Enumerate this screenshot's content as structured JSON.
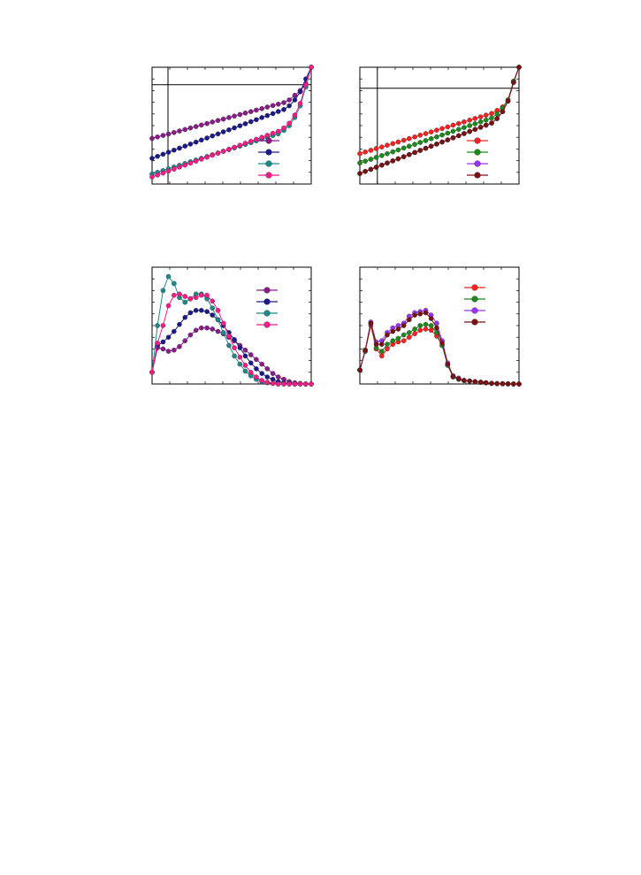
{
  "chart_data": [
    {
      "type": "line",
      "grid": false,
      "legend": "bottom-right",
      "xlim": [
        0,
        1
      ],
      "ylim": [
        0,
        1
      ],
      "refline_x": 0.1,
      "refline_y": 0.85,
      "x": [
        0,
        0.034,
        0.069,
        0.103,
        0.138,
        0.172,
        0.207,
        0.241,
        0.276,
        0.31,
        0.345,
        0.379,
        0.414,
        0.448,
        0.483,
        0.517,
        0.552,
        0.586,
        0.621,
        0.655,
        0.69,
        0.724,
        0.759,
        0.793,
        0.828,
        0.862,
        0.897,
        0.931,
        0.966,
        1.0
      ],
      "series": [
        {
          "color": "#8b1a8b",
          "values": [
            0.39,
            0.403,
            0.416,
            0.428,
            0.441,
            0.454,
            0.467,
            0.48,
            0.492,
            0.505,
            0.518,
            0.531,
            0.544,
            0.556,
            0.569,
            0.582,
            0.595,
            0.608,
            0.62,
            0.633,
            0.646,
            0.659,
            0.672,
            0.684,
            0.697,
            0.72,
            0.76,
            0.8,
            0.86,
            1.0
          ]
        },
        {
          "color": "#1a1a8b",
          "values": [
            0.22,
            0.237,
            0.255,
            0.272,
            0.29,
            0.307,
            0.325,
            0.342,
            0.359,
            0.377,
            0.394,
            0.412,
            0.429,
            0.447,
            0.464,
            0.481,
            0.499,
            0.516,
            0.534,
            0.551,
            0.569,
            0.586,
            0.603,
            0.621,
            0.638,
            0.67,
            0.72,
            0.79,
            0.9,
            1.0
          ]
        },
        {
          "color": "#1a8b8b",
          "values": [
            0.085,
            0.1,
            0.115,
            0.13,
            0.145,
            0.16,
            0.175,
            0.19,
            0.205,
            0.22,
            0.235,
            0.25,
            0.265,
            0.28,
            0.295,
            0.31,
            0.325,
            0.34,
            0.355,
            0.37,
            0.385,
            0.4,
            0.415,
            0.43,
            0.46,
            0.5,
            0.57,
            0.67,
            0.83,
            1.0
          ]
        },
        {
          "color": "#ff1a8b",
          "values": [
            0.06,
            0.077,
            0.094,
            0.111,
            0.128,
            0.145,
            0.162,
            0.179,
            0.196,
            0.213,
            0.23,
            0.247,
            0.264,
            0.281,
            0.298,
            0.315,
            0.332,
            0.349,
            0.366,
            0.383,
            0.4,
            0.417,
            0.434,
            0.451,
            0.48,
            0.52,
            0.59,
            0.69,
            0.85,
            1.0
          ]
        }
      ]
    },
    {
      "type": "line",
      "grid": false,
      "legend": "bottom-right",
      "xlim": [
        0,
        1
      ],
      "ylim": [
        0,
        1
      ],
      "refline_x": 0.11,
      "refline_y": 0.82,
      "x": [
        0,
        0.034,
        0.069,
        0.103,
        0.138,
        0.172,
        0.207,
        0.241,
        0.276,
        0.31,
        0.345,
        0.379,
        0.414,
        0.448,
        0.483,
        0.517,
        0.552,
        0.586,
        0.621,
        0.655,
        0.69,
        0.724,
        0.759,
        0.793,
        0.828,
        0.862,
        0.897,
        0.931,
        0.966,
        1.0
      ],
      "series": [
        {
          "color": "#ff2020",
          "values": [
            0.26,
            0.274,
            0.289,
            0.303,
            0.317,
            0.332,
            0.346,
            0.36,
            0.375,
            0.389,
            0.403,
            0.418,
            0.432,
            0.446,
            0.461,
            0.475,
            0.489,
            0.504,
            0.518,
            0.532,
            0.547,
            0.561,
            0.575,
            0.59,
            0.604,
            0.63,
            0.66,
            0.72,
            0.88,
            1.0
          ]
        },
        {
          "color": "#1a8b1a",
          "values": [
            0.18,
            0.196,
            0.212,
            0.228,
            0.244,
            0.26,
            0.276,
            0.292,
            0.308,
            0.324,
            0.34,
            0.356,
            0.372,
            0.388,
            0.404,
            0.42,
            0.436,
            0.452,
            0.468,
            0.484,
            0.5,
            0.516,
            0.532,
            0.548,
            0.564,
            0.6,
            0.65,
            0.72,
            0.88,
            1.0
          ]
        },
        {
          "color": "#9b30ff",
          "values": [
            0.09,
            0.108,
            0.126,
            0.144,
            0.162,
            0.18,
            0.198,
            0.216,
            0.234,
            0.252,
            0.27,
            0.288,
            0.306,
            0.324,
            0.342,
            0.36,
            0.378,
            0.396,
            0.414,
            0.432,
            0.45,
            0.468,
            0.486,
            0.504,
            0.522,
            0.56,
            0.62,
            0.71,
            0.87,
            1.0
          ]
        },
        {
          "color": "#7a1010",
          "values": [
            0.09,
            0.108,
            0.126,
            0.144,
            0.162,
            0.18,
            0.198,
            0.216,
            0.234,
            0.252,
            0.27,
            0.288,
            0.306,
            0.324,
            0.342,
            0.36,
            0.378,
            0.396,
            0.414,
            0.432,
            0.45,
            0.468,
            0.486,
            0.504,
            0.522,
            0.56,
            0.62,
            0.71,
            0.87,
            1.0
          ]
        }
      ]
    },
    {
      "type": "line",
      "grid": false,
      "legend": "top-right",
      "xlim": [
        0,
        1
      ],
      "ylim": [
        0,
        1
      ],
      "x": [
        0,
        0.034,
        0.069,
        0.103,
        0.138,
        0.172,
        0.207,
        0.241,
        0.276,
        0.31,
        0.345,
        0.379,
        0.414,
        0.448,
        0.483,
        0.517,
        0.552,
        0.586,
        0.621,
        0.655,
        0.69,
        0.724,
        0.759,
        0.793,
        0.828,
        0.862,
        0.897,
        0.931,
        0.966,
        1.0
      ],
      "series": [
        {
          "color": "#8b1a8b",
          "values": [
            0.1,
            0.31,
            0.3,
            0.28,
            0.29,
            0.32,
            0.37,
            0.42,
            0.46,
            0.48,
            0.48,
            0.47,
            0.45,
            0.43,
            0.4,
            0.37,
            0.33,
            0.29,
            0.25,
            0.21,
            0.17,
            0.13,
            0.09,
            0.06,
            0.04,
            0.02,
            0.01,
            0.005,
            0.0,
            0.0
          ]
        },
        {
          "color": "#1a1a8b",
          "values": [
            0.1,
            0.33,
            0.36,
            0.4,
            0.45,
            0.51,
            0.57,
            0.61,
            0.63,
            0.63,
            0.62,
            0.59,
            0.55,
            0.5,
            0.44,
            0.38,
            0.31,
            0.24,
            0.18,
            0.13,
            0.09,
            0.06,
            0.04,
            0.02,
            0.01,
            0.005,
            0.0,
            0.0,
            0.0,
            0.0
          ]
        },
        {
          "color": "#1a8b8b",
          "values": [
            0.1,
            0.5,
            0.8,
            0.92,
            0.86,
            0.74,
            0.7,
            0.73,
            0.77,
            0.77,
            0.73,
            0.65,
            0.55,
            0.44,
            0.33,
            0.24,
            0.17,
            0.11,
            0.07,
            0.04,
            0.02,
            0.01,
            0.005,
            0.0,
            0.0,
            0.0,
            0.0,
            0.0,
            0.0,
            0.0
          ]
        },
        {
          "color": "#ff1a8b",
          "values": [
            0.1,
            0.35,
            0.5,
            0.67,
            0.76,
            0.77,
            0.75,
            0.73,
            0.74,
            0.76,
            0.76,
            0.71,
            0.63,
            0.52,
            0.41,
            0.31,
            0.23,
            0.16,
            0.1,
            0.06,
            0.03,
            0.015,
            0.005,
            0.0,
            0.0,
            0.0,
            0.0,
            0.0,
            0.0,
            0.0
          ]
        }
      ]
    },
    {
      "type": "line",
      "grid": false,
      "legend": "top-right",
      "xlim": [
        0,
        1
      ],
      "ylim": [
        0,
        1
      ],
      "x": [
        0,
        0.034,
        0.069,
        0.103,
        0.138,
        0.172,
        0.207,
        0.241,
        0.276,
        0.31,
        0.345,
        0.379,
        0.414,
        0.448,
        0.483,
        0.517,
        0.552,
        0.586,
        0.621,
        0.655,
        0.69,
        0.724,
        0.759,
        0.793,
        0.828,
        0.862,
        0.897,
        0.931,
        0.966,
        1.0
      ],
      "series": [
        {
          "color": "#ff2020",
          "values": [
            0.12,
            0.28,
            0.5,
            0.3,
            0.24,
            0.3,
            0.34,
            0.36,
            0.37,
            0.4,
            0.43,
            0.46,
            0.47,
            0.46,
            0.41,
            0.33,
            0.16,
            0.06,
            0.04,
            0.03,
            0.025,
            0.02,
            0.015,
            0.01,
            0.005,
            0.003,
            0.002,
            0.001,
            0.0,
            0.0
          ]
        },
        {
          "color": "#1a8b1a",
          "values": [
            0.12,
            0.28,
            0.52,
            0.31,
            0.28,
            0.34,
            0.37,
            0.39,
            0.42,
            0.44,
            0.47,
            0.5,
            0.51,
            0.5,
            0.44,
            0.33,
            0.16,
            0.06,
            0.04,
            0.03,
            0.025,
            0.02,
            0.015,
            0.01,
            0.005,
            0.003,
            0.002,
            0.001,
            0.0,
            0.0
          ]
        },
        {
          "color": "#9b30ff",
          "values": [
            0.12,
            0.29,
            0.53,
            0.36,
            0.37,
            0.44,
            0.48,
            0.5,
            0.52,
            0.58,
            0.61,
            0.62,
            0.63,
            0.59,
            0.52,
            0.37,
            0.18,
            0.07,
            0.05,
            0.03,
            0.025,
            0.02,
            0.015,
            0.01,
            0.005,
            0.003,
            0.002,
            0.001,
            0.0,
            0.0
          ]
        },
        {
          "color": "#7a1010",
          "values": [
            0.12,
            0.29,
            0.52,
            0.34,
            0.34,
            0.42,
            0.45,
            0.47,
            0.5,
            0.55,
            0.59,
            0.6,
            0.61,
            0.56,
            0.48,
            0.35,
            0.17,
            0.065,
            0.045,
            0.03,
            0.025,
            0.02,
            0.015,
            0.01,
            0.005,
            0.003,
            0.002,
            0.001,
            0.0,
            0.0
          ]
        }
      ]
    }
  ]
}
